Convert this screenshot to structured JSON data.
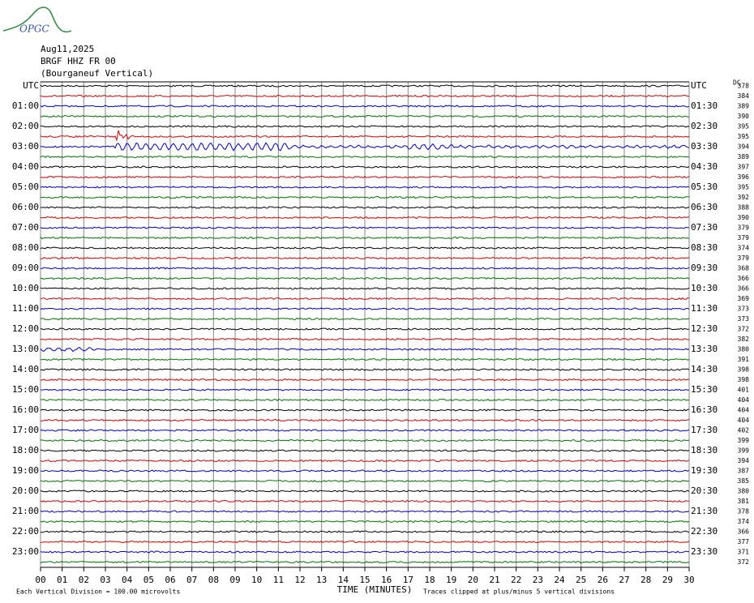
{
  "logo": "OPGC",
  "header": {
    "date": "Aug11,2025",
    "station": "BRGF HHZ FR 00",
    "location": "(Bourganeuf Vertical)"
  },
  "chart_data": {
    "type": "helicorder",
    "left_labels": [
      "UTC",
      "01:00",
      "02:00",
      "03:00",
      "04:00",
      "05:00",
      "06:00",
      "07:00",
      "08:00",
      "09:00",
      "10:00",
      "11:00",
      "12:00",
      "13:00",
      "14:00",
      "15:00",
      "16:00",
      "17:00",
      "18:00",
      "19:00",
      "20:00",
      "21:00",
      "22:00",
      "23:00"
    ],
    "right_labels": [
      "UTC",
      "01:30",
      "02:30",
      "03:30",
      "04:30",
      "05:30",
      "06:30",
      "07:30",
      "08:30",
      "09:30",
      "10:30",
      "11:30",
      "12:30",
      "13:30",
      "14:30",
      "15:30",
      "16:30",
      "17:30",
      "18:30",
      "19:30",
      "20:30",
      "21:30",
      "22:30",
      "23:30"
    ],
    "dc_label": "DC",
    "offsets": [
      378,
      384,
      389,
      390,
      395,
      395,
      394,
      389,
      397,
      396,
      395,
      392,
      388,
      390,
      379,
      379,
      374,
      379,
      368,
      366,
      366,
      369,
      373,
      373,
      372,
      382,
      380,
      391,
      398,
      398,
      401,
      404,
      404,
      404,
      402,
      399,
      399,
      394,
      387,
      385,
      380,
      381,
      378,
      374,
      366,
      377,
      371,
      372
    ],
    "colors": [
      "#000000",
      "#d00000",
      "#0000c0",
      "#007000"
    ],
    "xlim": [
      0,
      30
    ],
    "xticks": [
      {
        "value": 0,
        "label": "00"
      },
      {
        "value": 1,
        "label": "01"
      },
      {
        "value": 2,
        "label": "02"
      },
      {
        "value": 3,
        "label": "03"
      },
      {
        "value": 4,
        "label": "04"
      },
      {
        "value": 5,
        "label": "05"
      },
      {
        "value": 6,
        "label": "06"
      },
      {
        "value": 7,
        "label": "07"
      },
      {
        "value": 8,
        "label": "08"
      },
      {
        "value": 9,
        "label": "09"
      },
      10,
      11,
      12,
      13,
      14,
      15,
      16,
      17,
      18,
      19,
      20,
      21,
      22,
      23,
      24,
      25,
      26,
      27,
      28,
      29,
      30
    ],
    "xlabel": "TIME (MINUTES)",
    "notes": [
      "Each Vertical Division =  100.00 microvolts",
      "Traces clipped at plus/minus 5 vertical divisions"
    ],
    "grid": true
  }
}
